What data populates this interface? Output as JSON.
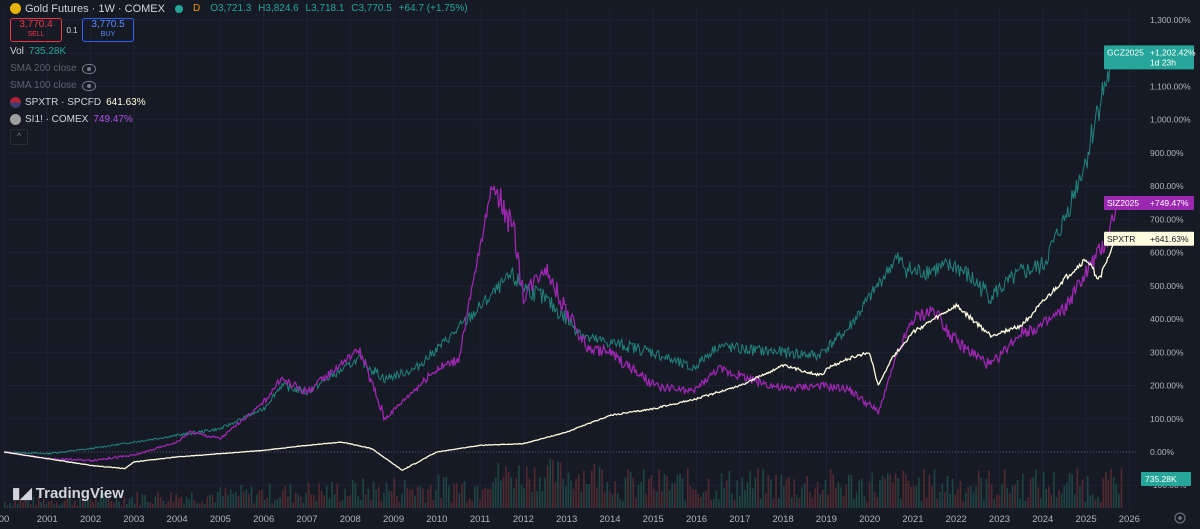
{
  "header": {
    "title": "Gold Futures · 1W · COMEX",
    "status_letter": "D",
    "ohlc": {
      "o": "O3,721.3",
      "h": "H3,824.6",
      "l": "L3,718.1",
      "c": "C3,770.5",
      "change": "+64.7 (+1.75%)"
    }
  },
  "trade": {
    "sell_price": "3,770.4",
    "sell_label": "SELL",
    "qty": "0.1",
    "buy_price": "3,770.5",
    "buy_label": "BUY"
  },
  "indicators": {
    "vol_label": "Vol",
    "vol_value": "735.28K",
    "sma200": "SMA 200 close",
    "sma100": "SMA 100 close",
    "spx_label": "SPXTR · SPCFD",
    "spx_value": "641.63%",
    "si_label": "SI1! · COMEX",
    "si_value": "749.47%",
    "collapse": "^"
  },
  "branding": "TradingView",
  "colors": {
    "gold": "#26a69a",
    "gold_down": "#ef5350",
    "silver": "#9c27b0",
    "spx": "#fffde0",
    "background": "#161a25",
    "grid": "#1f2330",
    "zero_line": "#4a4f5c",
    "volume": "#5a2b33"
  },
  "chart_data": {
    "type": "line",
    "x_unit": "year",
    "xticks": [
      "00",
      "2001",
      "2002",
      "2003",
      "2004",
      "2005",
      "2006",
      "2007",
      "2008",
      "2009",
      "2010",
      "2011",
      "2012",
      "2013",
      "2014",
      "2015",
      "2016",
      "2017",
      "2018",
      "2019",
      "2020",
      "2021",
      "2022",
      "2023",
      "2024",
      "2025",
      "2026"
    ],
    "yticks": [
      "1,300.00%",
      "1,200.00%",
      "1,100.00%",
      "1,000.00%",
      "900.00%",
      "800.00%",
      "700.00%",
      "600.00%",
      "500.00%",
      "400.00%",
      "300.00%",
      "200.00%",
      "100.00%",
      "0.00%",
      "-100.00%"
    ],
    "ylim": [
      -100,
      1300
    ],
    "series": [
      {
        "name": "GCZ2025",
        "label": "+1,202.42%",
        "sublabel": "1d 23h",
        "x": [
          2000,
          2001,
          2002,
          2003,
          2004,
          2005,
          2006,
          2006.4,
          2007,
          2008.2,
          2008.8,
          2009.5,
          2010.5,
          2011.7,
          2012,
          2012.5,
          2013.5,
          2014,
          2015,
          2015.9,
          2016.5,
          2017,
          2018,
          2018.8,
          2019.5,
          2020.6,
          2021,
          2022,
          2022.8,
          2023.5,
          2024,
          2024.5,
          2025,
          2025.3,
          2025.7
        ],
        "y": [
          0,
          -5,
          10,
          30,
          50,
          70,
          130,
          200,
          180,
          280,
          220,
          250,
          370,
          530,
          500,
          460,
          340,
          330,
          300,
          250,
          320,
          310,
          300,
          290,
          370,
          580,
          540,
          560,
          470,
          540,
          560,
          700,
          880,
          1050,
          1202.42
        ]
      },
      {
        "name": "SIZ2025",
        "label": "+749.47%",
        "x": [
          2000,
          2001,
          2002,
          2003,
          2004,
          2004.3,
          2005,
          2006,
          2006.4,
          2007,
          2008.2,
          2008.8,
          2009.5,
          2010,
          2010.5,
          2011.3,
          2011.8,
          2012,
          2012.5,
          2013,
          2013.5,
          2014,
          2015,
          2015.9,
          2016.5,
          2017,
          2018,
          2018.8,
          2019.5,
          2020.2,
          2020.6,
          2021,
          2021.5,
          2022,
          2022.8,
          2023.5,
          2024,
          2024.5,
          2025,
          2025.5,
          2025.7
        ],
        "y": [
          0,
          -20,
          -25,
          -10,
          30,
          60,
          40,
          150,
          220,
          180,
          310,
          100,
          190,
          250,
          280,
          820,
          650,
          470,
          560,
          420,
          310,
          300,
          200,
          180,
          250,
          230,
          190,
          200,
          190,
          120,
          280,
          400,
          430,
          330,
          260,
          360,
          380,
          430,
          540,
          640,
          749.47
        ]
      },
      {
        "name": "SPXTR",
        "label": "+641.63%",
        "x": [
          2000,
          2001,
          2002,
          2002.8,
          2003,
          2004,
          2005,
          2006,
          2007,
          2007.8,
          2008.5,
          2009.2,
          2010,
          2011,
          2012,
          2013,
          2014,
          2015,
          2016,
          2017,
          2018,
          2018.9,
          2019,
          2019.5,
          2020,
          2020.2,
          2020.5,
          2021,
          2022,
          2022.8,
          2023.5,
          2024,
          2024.5,
          2025,
          2025.3,
          2025.7
        ],
        "y": [
          0,
          -20,
          -40,
          -50,
          -30,
          -15,
          -5,
          5,
          20,
          30,
          10,
          -55,
          0,
          20,
          25,
          60,
          110,
          130,
          160,
          200,
          260,
          230,
          250,
          280,
          300,
          200,
          280,
          360,
          440,
          350,
          380,
          450,
          520,
          580,
          520,
          641.63
        ]
      }
    ],
    "volume_label": "735.28K",
    "grid": true,
    "legend_position": "top-left"
  }
}
